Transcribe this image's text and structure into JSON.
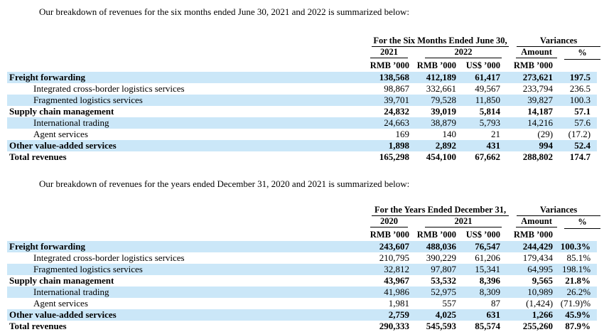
{
  "colors": {
    "highlight_row": "#cbe7f8",
    "text": "#000000",
    "rule": "#000000",
    "background": "#ffffff"
  },
  "sections": [
    {
      "intro": "Our breakdown of revenues for the six months ended June 30, 2021 and 2022 is summarized below:",
      "table": {
        "period_header": "For the Six Months Ended June 30,",
        "variances_header": "Variances",
        "year_col_1": "2021",
        "year_col_2": "2022",
        "amount_col": "Amount",
        "percent_col": "%",
        "units": [
          "RMB ’000",
          "RMB ’000",
          "US$ ’000",
          "RMB ’000"
        ],
        "rows": [
          {
            "label": "Freight forwarding",
            "bold": true,
            "indent": false,
            "highlight": true,
            "values": [
              "138,568",
              "412,189",
              "61,417",
              "273,621",
              "197.5"
            ]
          },
          {
            "label": "Integrated cross-border logistics services",
            "bold": false,
            "indent": true,
            "highlight": false,
            "values": [
              "98,867",
              "332,661",
              "49,567",
              "233,794",
              "236.5"
            ]
          },
          {
            "label": "Fragmented logistics services",
            "bold": false,
            "indent": true,
            "highlight": true,
            "values": [
              "39,701",
              "79,528",
              "11,850",
              "39,827",
              "100.3"
            ]
          },
          {
            "label": "Supply chain management",
            "bold": true,
            "indent": false,
            "highlight": false,
            "values": [
              "24,832",
              "39,019",
              "5,814",
              "14,187",
              "57.1"
            ]
          },
          {
            "label": "International trading",
            "bold": false,
            "indent": true,
            "highlight": true,
            "values": [
              "24,663",
              "38,879",
              "5,793",
              "14,216",
              "57.6"
            ]
          },
          {
            "label": "Agent services",
            "bold": false,
            "indent": true,
            "highlight": false,
            "values": [
              "169",
              "140",
              "21",
              "(29)",
              "(17.2)"
            ]
          },
          {
            "label": "Other value-added services",
            "bold": true,
            "indent": false,
            "highlight": true,
            "values": [
              "1,898",
              "2,892",
              "431",
              "994",
              "52.4"
            ]
          },
          {
            "label": "Total revenues",
            "bold": true,
            "indent": false,
            "highlight": false,
            "values": [
              "165,298",
              "454,100",
              "67,662",
              "288,802",
              "174.7"
            ]
          }
        ]
      }
    },
    {
      "intro": "Our breakdown of revenues for the years ended December 31, 2020 and 2021 is summarized below:",
      "table": {
        "period_header": "For the Years Ended December 31,",
        "variances_header": "Variances",
        "year_col_1": "2020",
        "year_col_2": "2021",
        "amount_col": "Amount",
        "percent_col": "%",
        "units": [
          "RMB ’000",
          "RMB ’000",
          "US$ ’000",
          "RMB ’000"
        ],
        "rows": [
          {
            "label": "Freight forwarding",
            "bold": true,
            "indent": false,
            "highlight": true,
            "values": [
              "243,607",
              "488,036",
              "76,547",
              "244,429",
              "100.3%"
            ]
          },
          {
            "label": "Integrated cross-border logistics services",
            "bold": false,
            "indent": true,
            "highlight": false,
            "values": [
              "210,795",
              "390,229",
              "61,206",
              "179,434",
              "85.1%"
            ]
          },
          {
            "label": "Fragmented logistics services",
            "bold": false,
            "indent": true,
            "highlight": true,
            "values": [
              "32,812",
              "97,807",
              "15,341",
              "64,995",
              "198.1%"
            ]
          },
          {
            "label": "Supply chain management",
            "bold": true,
            "indent": false,
            "highlight": false,
            "values": [
              "43,967",
              "53,532",
              "8,396",
              "9,565",
              "21.8%"
            ]
          },
          {
            "label": "International trading",
            "bold": false,
            "indent": true,
            "highlight": true,
            "values": [
              "41,986",
              "52,975",
              "8,309",
              "10,989",
              "26.2%"
            ]
          },
          {
            "label": "Agent services",
            "bold": false,
            "indent": true,
            "highlight": false,
            "values": [
              "1,981",
              "557",
              "87",
              "(1,424)",
              "(71.9)%"
            ]
          },
          {
            "label": "Other value-added services",
            "bold": true,
            "indent": false,
            "highlight": true,
            "values": [
              "2,759",
              "4,025",
              "631",
              "1,266",
              "45.9%"
            ]
          },
          {
            "label": "Total revenues",
            "bold": true,
            "indent": false,
            "highlight": false,
            "values": [
              "290,333",
              "545,593",
              "85,574",
              "255,260",
              "87.9%"
            ]
          }
        ]
      }
    }
  ]
}
